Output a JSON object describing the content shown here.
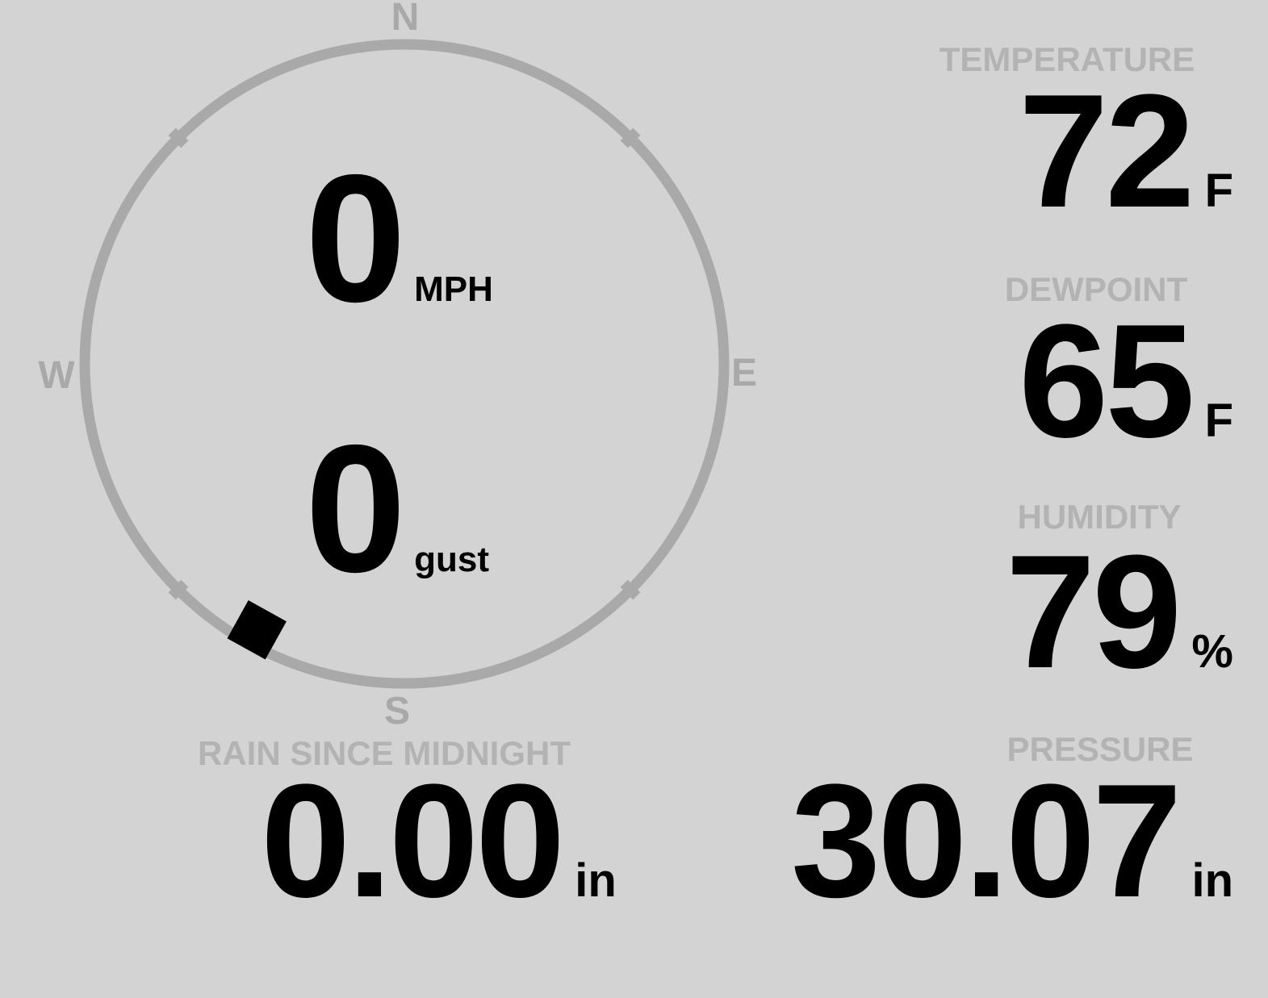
{
  "colors": {
    "background": "#d3d3d3",
    "label_gray": "#b3b3b3",
    "compass_gray": "#a9a9a9",
    "value_black": "#000000"
  },
  "compass": {
    "cardinal_n": "N",
    "cardinal_e": "E",
    "cardinal_s": "S",
    "cardinal_w": "W",
    "wind_speed": "0",
    "wind_speed_unit": "MPH",
    "wind_gust": "0",
    "wind_gust_unit": "gust",
    "wind_direction_deg": 209
  },
  "readings": {
    "temperature": {
      "label": "TEMPERATURE",
      "value": "72",
      "unit": "F"
    },
    "dewpoint": {
      "label": "DEWPOINT",
      "value": "65",
      "unit": "F"
    },
    "humidity": {
      "label": "HUMIDITY",
      "value": "79",
      "unit": "%"
    },
    "rain": {
      "label": "RAIN SINCE MIDNIGHT",
      "value": "0.00",
      "unit": "in"
    },
    "pressure": {
      "label": "PRESSURE",
      "value": "30.07",
      "unit": "in"
    }
  }
}
